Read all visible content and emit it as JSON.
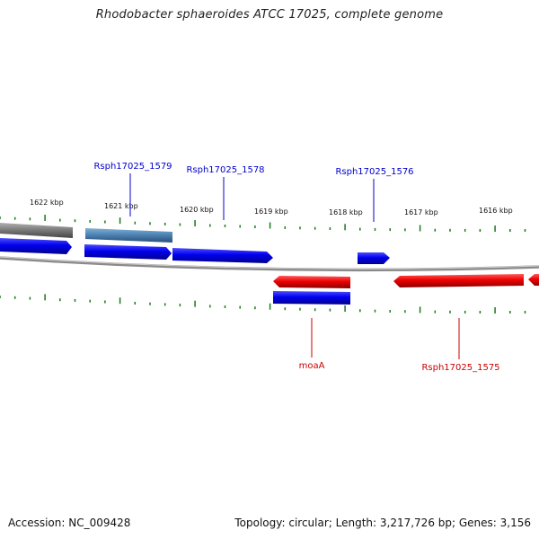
{
  "title": "Rhodobacter sphaeroides ATCC 17025, complete genome",
  "ticks": [
    "1622 kbp",
    "1621 kbp",
    "1620 kbp",
    "1619 kbp",
    "1618 kbp",
    "1617 kbp",
    "1616 kbp"
  ],
  "gene_labels": {
    "rsph1579": "Rsph17025_1579",
    "rsph1578": "Rsph17025_1578",
    "rsph1576": "Rsph17025_1576",
    "moaA": "moaA",
    "rsph1575": "Rsph17025_1575"
  },
  "footer": {
    "accession": "Accession: NC_009428",
    "info": "Topology: circular; Length: 3,217,726 bp; Genes: 3,156"
  },
  "colors": {
    "forward": "#0000ee",
    "reverse": "#ee0000",
    "highlight": "#4a7fb0",
    "other": "#777777",
    "tick": "#1a7a1a",
    "backbone": "#888888"
  }
}
